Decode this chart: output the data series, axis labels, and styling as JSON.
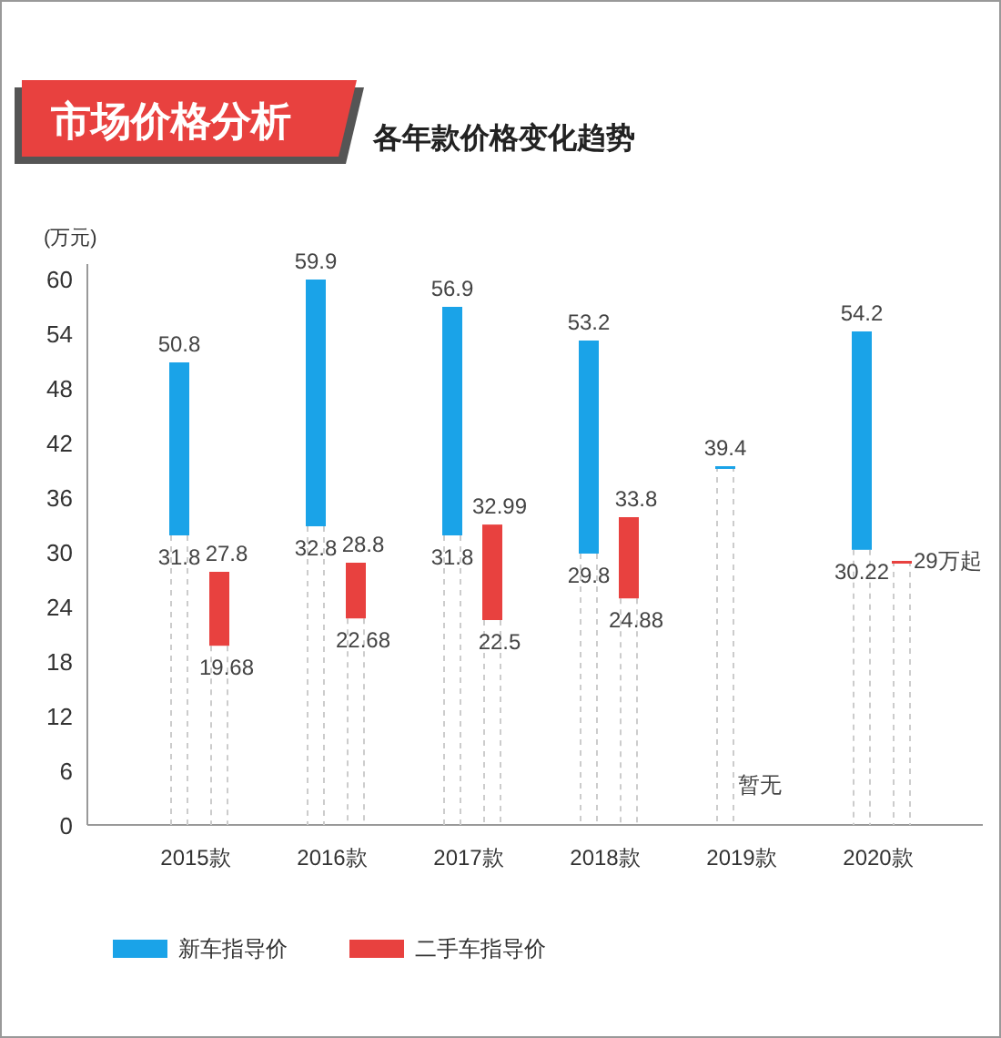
{
  "chart_data": {
    "type": "bar",
    "title": "市场价格分析",
    "subtitle": "各年款价格变化趋势",
    "ylabel": "(万元)",
    "categories": [
      "2015款",
      "2016款",
      "2017款",
      "2018款",
      "2019款",
      "2020款"
    ],
    "series": [
      {
        "name": "新车指导价",
        "color": "#1aa3e8",
        "base": [
          31.8,
          32.8,
          31.8,
          29.8,
          39.4,
          30.22
        ],
        "values": [
          19.0,
          27.1,
          25.1,
          23.4,
          0,
          23.98
        ]
      },
      {
        "name": "二手车指导价",
        "color": "#e8413f",
        "base": [
          19.68,
          22.68,
          22.5,
          24.88,
          null,
          29
        ],
        "values": [
          8.12,
          6.12,
          10.49,
          8.92,
          null,
          0
        ]
      }
    ],
    "ylim": [
      0,
      60
    ],
    "yticks": [
      0,
      6,
      12,
      18,
      24,
      30,
      36,
      42,
      48,
      54,
      60
    ],
    "grid": false,
    "legend": "bottom",
    "annotations": [
      {
        "text": "50.8",
        "x": "2015款",
        "y": 50.8
      },
      {
        "text": "31.8",
        "x": "2015款",
        "y": 31.8
      },
      {
        "text": "59.9",
        "x": "2016款",
        "y": 59.9
      },
      {
        "text": "32.8",
        "x": "2016款",
        "y": 32.8
      },
      {
        "text": "56.9",
        "x": "2017款",
        "y": 56.9
      },
      {
        "text": "31.8",
        "x": "2017款",
        "y": 31.8
      },
      {
        "text": "32.99",
        "x": "2017款",
        "y": 32.99
      },
      {
        "text": "53.2",
        "x": "2018款",
        "y": 53.2
      },
      {
        "text": "29.8",
        "x": "2018款",
        "y": 29.8
      },
      {
        "text": "33.8",
        "x": "2018款",
        "y": 33.8
      },
      {
        "text": "39.4",
        "x": "2019款",
        "y": 39.4
      },
      {
        "text": "54.2",
        "x": "2020款",
        "y": 54.2
      },
      {
        "text": "30.22",
        "x": "2020款",
        "y": 30.22
      },
      "27.8",
      "19.68",
      "28.8",
      "22.68",
      "22.5",
      "24.88",
      "暂无",
      "29万起"
    ]
  }
}
